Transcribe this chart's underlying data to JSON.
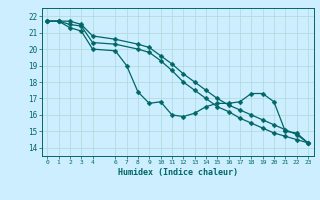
{
  "xlabel": "Humidex (Indice chaleur)",
  "bg_color": "#cceeff",
  "line_color": "#006666",
  "grid_color": "#b0d8d8",
  "xlim": [
    -0.5,
    23.5
  ],
  "ylim": [
    13.5,
    22.5
  ],
  "yticks": [
    14,
    15,
    16,
    17,
    18,
    19,
    20,
    21,
    22
  ],
  "xticks": [
    0,
    1,
    2,
    3,
    4,
    6,
    7,
    8,
    9,
    10,
    11,
    12,
    13,
    14,
    15,
    16,
    17,
    18,
    19,
    20,
    21,
    22,
    23
  ],
  "xtick_labels": [
    "0",
    "1",
    "2",
    "3",
    "4",
    "6",
    "7",
    "8",
    "9",
    "10",
    "11",
    "12",
    "13",
    "14",
    "15",
    "16",
    "17",
    "18",
    "19",
    "20",
    "21",
    "22",
    "23"
  ],
  "line1_x": [
    0,
    1,
    2,
    3,
    4,
    6,
    7,
    8,
    9,
    10,
    11,
    12,
    13,
    14,
    15,
    16,
    17,
    18,
    19,
    20,
    21,
    22,
    23
  ],
  "line1_y": [
    21.7,
    21.7,
    21.3,
    21.1,
    20.0,
    19.9,
    19.0,
    17.4,
    16.7,
    16.8,
    16.0,
    15.9,
    16.1,
    16.5,
    16.7,
    16.7,
    16.8,
    17.3,
    17.3,
    16.8,
    15.0,
    14.9,
    14.3
  ],
  "line2_x": [
    0,
    1,
    2,
    3,
    4,
    6,
    8,
    9,
    10,
    11,
    12,
    13,
    14,
    15,
    16,
    17,
    18,
    19,
    20,
    21,
    22,
    23
  ],
  "line2_y": [
    21.7,
    21.7,
    21.5,
    21.4,
    20.4,
    20.3,
    20.0,
    19.8,
    19.3,
    18.7,
    18.0,
    17.5,
    17.0,
    16.5,
    16.2,
    15.8,
    15.5,
    15.2,
    14.9,
    14.7,
    14.5,
    14.3
  ],
  "line3_x": [
    0,
    1,
    2,
    3,
    4,
    6,
    8,
    9,
    10,
    11,
    12,
    13,
    14,
    15,
    16,
    17,
    18,
    19,
    20,
    21,
    22,
    23
  ],
  "line3_y": [
    21.7,
    21.7,
    21.7,
    21.5,
    20.8,
    20.6,
    20.3,
    20.1,
    19.6,
    19.1,
    18.5,
    18.0,
    17.5,
    17.0,
    16.6,
    16.3,
    16.0,
    15.7,
    15.4,
    15.1,
    14.8,
    14.3
  ]
}
